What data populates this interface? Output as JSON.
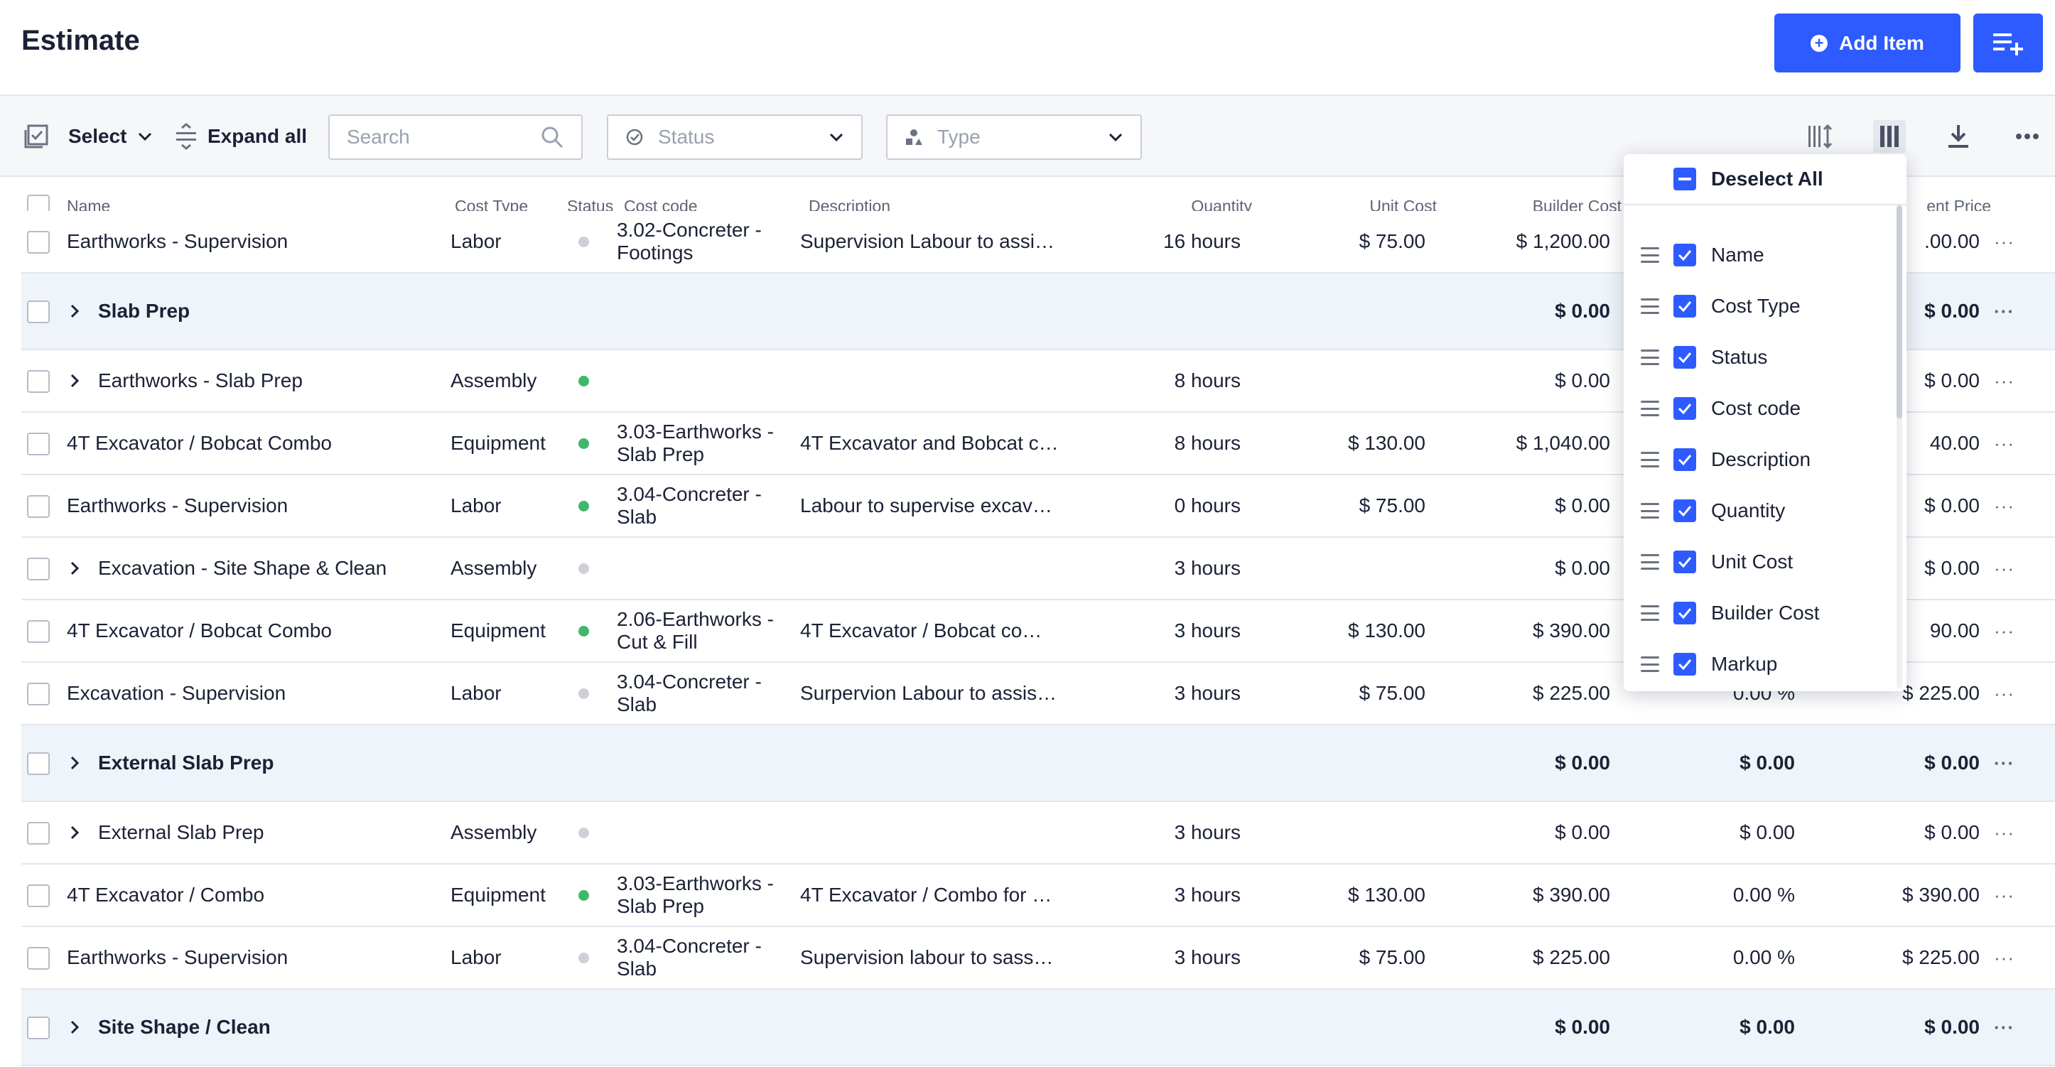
{
  "header": {
    "title": "Estimate",
    "add_item_label": "Add Item",
    "accent_color": "#2e5bff"
  },
  "toolbar": {
    "select_label": "Select",
    "expand_all_label": "Expand all",
    "search_placeholder": "Search",
    "status_placeholder": "Status",
    "type_placeholder": "Type"
  },
  "columns": {
    "name": "Name",
    "cost_type": "Cost Type",
    "status": "Status",
    "cost_code": "Cost code",
    "description": "Description",
    "quantity": "Quantity",
    "unit_cost": "Unit Cost",
    "builder_cost": "Builder Cost",
    "client_price": "ent Price"
  },
  "rows": [
    {
      "name": "Earthworks - Supervision",
      "cost_type": "Labor",
      "status": "grey",
      "cost_code": "3.02-Concreter - Footings",
      "description": "Supervision Labour to assi…",
      "quantity": "16 hours",
      "unit_cost": "$ 75.00",
      "builder_cost": "$ 1,200.00",
      "markup": "",
      "client_price": ".00.00"
    },
    {
      "name": "Slab Prep",
      "group": true,
      "builder_cost": "$ 0.00",
      "markup": "",
      "client_price": "$ 0.00"
    },
    {
      "name": "Earthworks - Slab Prep",
      "cost_type": "Assembly",
      "status": "green",
      "quantity": "8 hours",
      "builder_cost": "$ 0.00",
      "markup": "",
      "client_price": "$ 0.00"
    },
    {
      "name": "4T Excavator / Bobcat Combo",
      "cost_type": "Equipment",
      "status": "green",
      "cost_code": "3.03-Earthworks - Slab Prep",
      "description": "4T Excavator and Bobcat c…",
      "quantity": "8 hours",
      "unit_cost": "$ 130.00",
      "builder_cost": "$ 1,040.00",
      "markup": "",
      "client_price": "40.00"
    },
    {
      "name": "Earthworks - Supervision",
      "cost_type": "Labor",
      "status": "green",
      "cost_code": "3.04-Concreter - Slab",
      "description": "Labour to supervise excav…",
      "quantity": "0 hours",
      "unit_cost": "$ 75.00",
      "builder_cost": "$ 0.00",
      "markup": "",
      "client_price": "$ 0.00"
    },
    {
      "name": "Excavation - Site Shape & Clean",
      "cost_type": "Assembly",
      "status": "grey",
      "quantity": "3 hours",
      "builder_cost": "$ 0.00",
      "markup": "",
      "client_price": "$ 0.00"
    },
    {
      "name": "4T Excavator / Bobcat Combo",
      "cost_type": "Equipment",
      "status": "green",
      "cost_code": "2.06-Earthworks - Cut & Fill",
      "description": "4T Excavator / Bobcat co…",
      "quantity": "3 hours",
      "unit_cost": "$ 130.00",
      "builder_cost": "$ 390.00",
      "markup": "",
      "client_price": "90.00"
    },
    {
      "name": "Excavation - Supervision",
      "cost_type": "Labor",
      "status": "grey",
      "cost_code": "3.04-Concreter - Slab",
      "description": "Surpervion Labour to assis…",
      "quantity": "3 hours",
      "unit_cost": "$ 75.00",
      "builder_cost": "$ 225.00",
      "markup": "0.00 %",
      "client_price": "$ 225.00"
    },
    {
      "name": "External Slab Prep",
      "group": true,
      "builder_cost": "$ 0.00",
      "markup": "$ 0.00",
      "client_price": "$ 0.00"
    },
    {
      "name": "External Slab Prep",
      "cost_type": "Assembly",
      "status": "grey",
      "quantity": "3 hours",
      "builder_cost": "$ 0.00",
      "markup": "$ 0.00",
      "client_price": "$ 0.00"
    },
    {
      "name": "4T Excavator / Combo",
      "cost_type": "Equipment",
      "status": "green",
      "cost_code": "3.03-Earthworks - Slab Prep",
      "description": "4T Excavator / Combo for …",
      "quantity": "3 hours",
      "unit_cost": "$ 130.00",
      "builder_cost": "$ 390.00",
      "markup": "0.00 %",
      "client_price": "$ 390.00"
    },
    {
      "name": "Earthworks - Supervision",
      "cost_type": "Labor",
      "status": "grey",
      "cost_code": "3.04-Concreter - Slab",
      "description": "Supervision labour to sass…",
      "quantity": "3 hours",
      "unit_cost": "$ 75.00",
      "builder_cost": "$ 225.00",
      "markup": "0.00 %",
      "client_price": "$ 225.00"
    },
    {
      "name": "Site Shape / Clean",
      "group": true,
      "builder_cost": "$ 0.00",
      "markup": "$ 0.00",
      "client_price": "$ 0.00"
    }
  ],
  "column_chooser": {
    "deselect_all_label": "Deselect All",
    "items": [
      {
        "label": "Name",
        "checked": true
      },
      {
        "label": "Cost Type",
        "checked": true
      },
      {
        "label": "Status",
        "checked": true
      },
      {
        "label": "Cost code",
        "checked": true
      },
      {
        "label": "Description",
        "checked": true
      },
      {
        "label": "Quantity",
        "checked": true
      },
      {
        "label": "Unit Cost",
        "checked": true
      },
      {
        "label": "Builder Cost",
        "checked": true
      },
      {
        "label": "Markup",
        "checked": true
      }
    ]
  },
  "status_colors": {
    "green": "#3fb86b",
    "grey": "#cdd0d8"
  }
}
